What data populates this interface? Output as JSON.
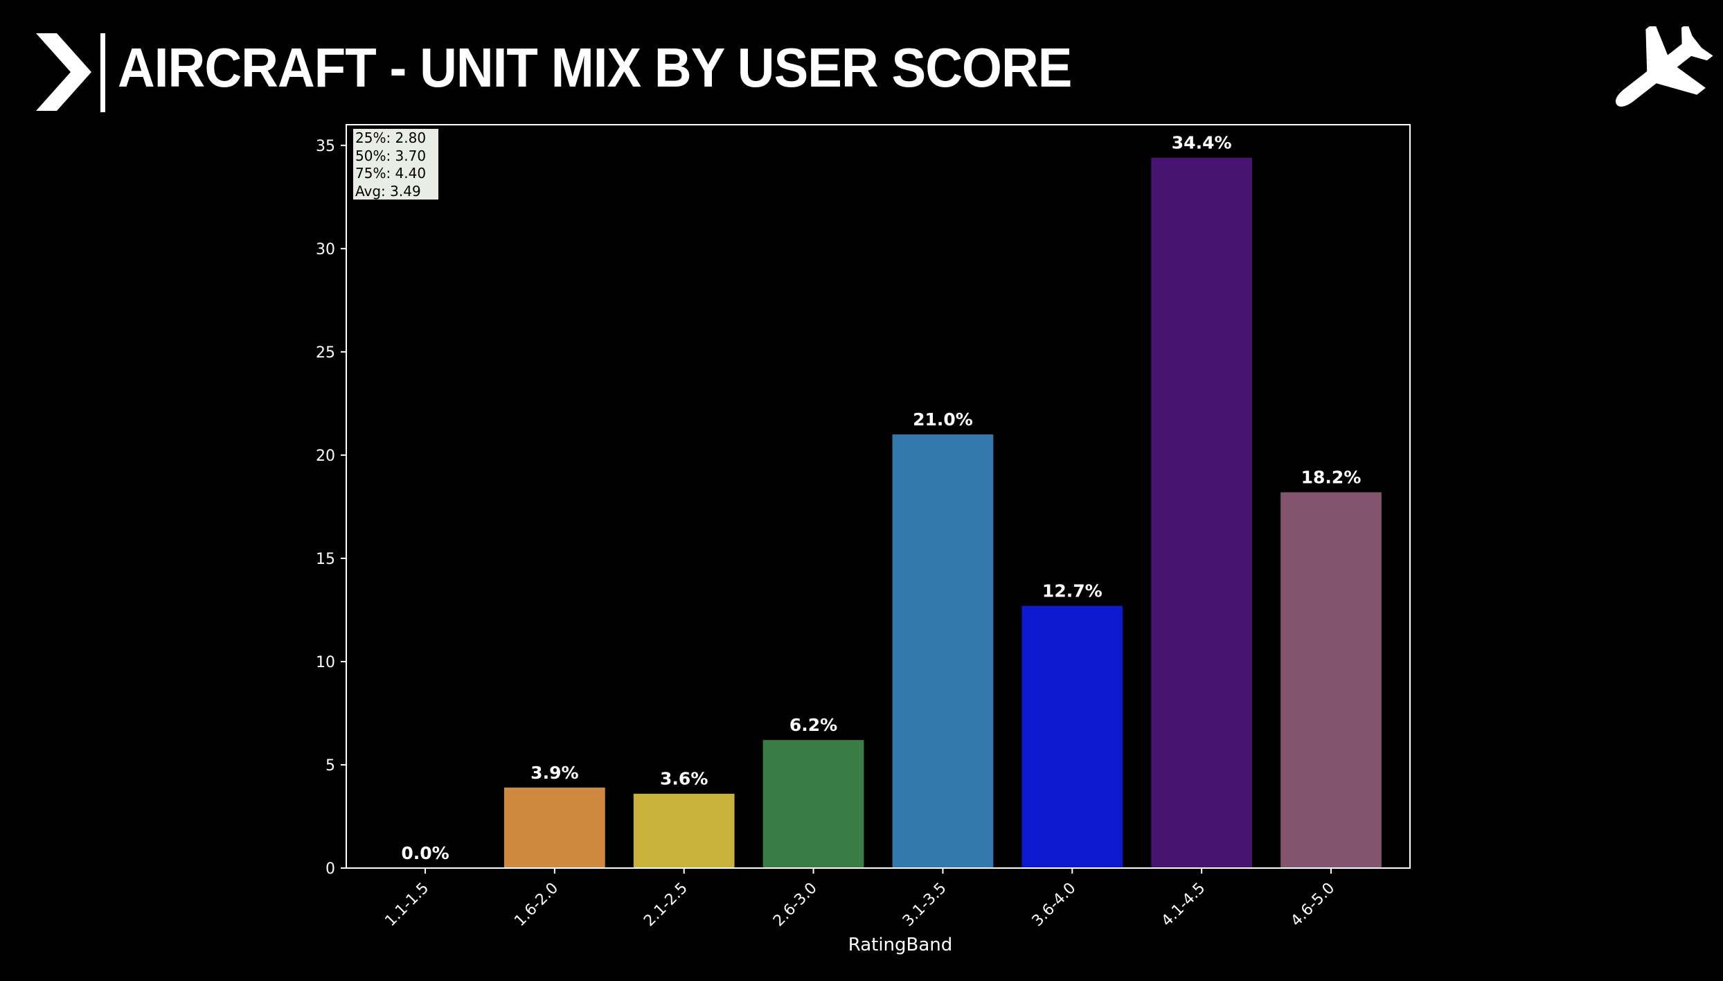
{
  "header": {
    "title": "AIRCRAFT - UNIT MIX BY USER SCORE"
  },
  "chart_data": {
    "type": "bar",
    "categories": [
      "1.1-1.5",
      "1.6-2.0",
      "2.1-2.5",
      "2.6-3.0",
      "3.1-3.5",
      "3.6-4.0",
      "4.1-4.5",
      "4.6-5.0"
    ],
    "values": [
      0.0,
      3.9,
      3.6,
      6.2,
      21.0,
      12.7,
      34.4,
      18.2
    ],
    "bar_labels": [
      "0.0%",
      "3.9%",
      "3.6%",
      "6.2%",
      "21.0%",
      "12.7%",
      "34.4%",
      "18.2%"
    ],
    "colors": [
      "#3b75af",
      "#cf8840",
      "#c8b23c",
      "#3a7d44",
      "#3479ad",
      "#0d19cc",
      "#471472",
      "#82546e"
    ],
    "xlabel": "RatingBand",
    "ylabel": "",
    "ylim": [
      0,
      36
    ],
    "yticks": [
      0,
      5,
      10,
      15,
      20,
      25,
      30,
      35
    ],
    "grid": false,
    "background": "#000000",
    "stats": [
      "25%: 2.80",
      "50%: 3.70",
      "75%: 4.40",
      "Avg: 3.49"
    ]
  }
}
